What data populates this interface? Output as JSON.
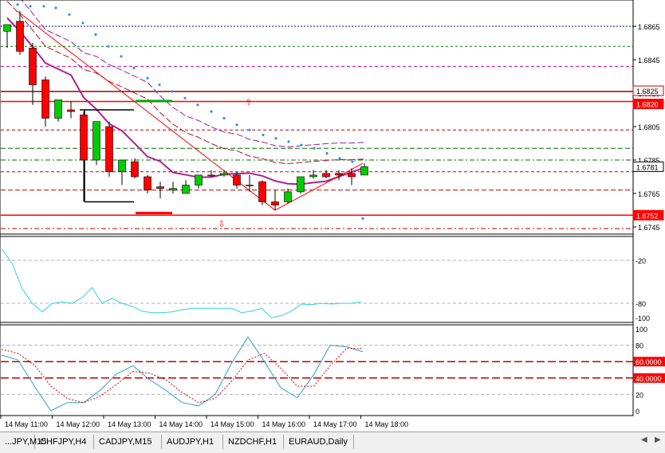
{
  "main_chart": {
    "price_labels": [
      "1.6865",
      "1.6845",
      "1.6825",
      "1.6805",
      "1.6785",
      "1.6765",
      "1.6745"
    ],
    "highlight_labels": [
      {
        "text": "1.6825",
        "bg": "#ffffff",
        "fg": "#000000",
        "border": "#cc0000"
      },
      {
        "text": "1.6820",
        "bg": "#ff0000",
        "fg": "#ffffff",
        "border": "#ff0000"
      },
      {
        "text": "1.6781",
        "bg": "#ffffff",
        "fg": "#000000",
        "border": "#000000"
      },
      {
        "text": "1.6752",
        "bg": "#ff0000",
        "fg": "#ffffff",
        "border": "#ff0000"
      }
    ],
    "candles": [
      {
        "o": 1.6862,
        "h": 1.6866,
        "l": 1.6852,
        "c": 1.6866
      },
      {
        "o": 1.6868,
        "h": 1.6874,
        "l": 1.6848,
        "c": 1.685
      },
      {
        "o": 1.6852,
        "h": 1.6855,
        "l": 1.6818,
        "c": 1.683
      },
      {
        "o": 1.6833,
        "h": 1.6835,
        "l": 1.6805,
        "c": 1.681
      },
      {
        "o": 1.681,
        "h": 1.682,
        "l": 1.6808,
        "c": 1.6821
      },
      {
        "o": 1.6815,
        "h": 1.682,
        "l": 1.681,
        "c": 1.6814
      },
      {
        "o": 1.6812,
        "h": 1.6814,
        "l": 1.676,
        "c": 1.6785
      },
      {
        "o": 1.6785,
        "h": 1.6808,
        "l": 1.6782,
        "c": 1.6808
      },
      {
        "o": 1.6805,
        "h": 1.6808,
        "l": 1.6775,
        "c": 1.6778
      },
      {
        "o": 1.6778,
        "h": 1.6784,
        "l": 1.677,
        "c": 1.6785
      },
      {
        "o": 1.6784,
        "h": 1.6786,
        "l": 1.6774,
        "c": 1.6775
      },
      {
        "o": 1.6775,
        "h": 1.6776,
        "l": 1.6765,
        "c": 1.6767
      },
      {
        "o": 1.6769,
        "h": 1.6772,
        "l": 1.6762,
        "c": 1.6768
      },
      {
        "o": 1.6767,
        "h": 1.6772,
        "l": 1.6765,
        "c": 1.6768
      },
      {
        "o": 1.6765,
        "h": 1.6773,
        "l": 1.6765,
        "c": 1.677
      },
      {
        "o": 1.677,
        "h": 1.6776,
        "l": 1.6768,
        "c": 1.6776
      },
      {
        "o": 1.6776,
        "h": 1.6779,
        "l": 1.6775,
        "c": 1.6776
      },
      {
        "o": 1.6776,
        "h": 1.6779,
        "l": 1.6775,
        "c": 1.6777
      },
      {
        "o": 1.6776,
        "h": 1.6778,
        "l": 1.6768,
        "c": 1.677
      },
      {
        "o": 1.677,
        "h": 1.6776,
        "l": 1.6766,
        "c": 1.677
      },
      {
        "o": 1.6772,
        "h": 1.6773,
        "l": 1.6758,
        "c": 1.676
      },
      {
        "o": 1.676,
        "h": 1.6767,
        "l": 1.6755,
        "c": 1.6758
      },
      {
        "o": 1.676,
        "h": 1.6768,
        "l": 1.6759,
        "c": 1.6766
      },
      {
        "o": 1.6766,
        "h": 1.6775,
        "l": 1.6765,
        "c": 1.6775
      },
      {
        "o": 1.6775,
        "h": 1.6779,
        "l": 1.6774,
        "c": 1.6776
      },
      {
        "o": 1.6777,
        "h": 1.6779,
        "l": 1.6774,
        "c": 1.6775
      },
      {
        "o": 1.6777,
        "h": 1.6779,
        "l": 1.6773,
        "c": 1.6776
      },
      {
        "o": 1.6777,
        "h": 1.678,
        "l": 1.677,
        "c": 1.6775
      },
      {
        "o": 1.6776,
        "h": 1.6783,
        "l": 1.6776,
        "c": 1.6781
      }
    ],
    "colors": {
      "bull": "#00cc00",
      "bear": "#ff0000",
      "wick": "#000000",
      "ma": "#b0208c",
      "ma_slow": "#b01030",
      "envelope_upper": "#9020b0",
      "sar": "#3090f0",
      "trendline": "#ff0000"
    }
  },
  "wpr_panel": {
    "labels": [
      "-20",
      "-80",
      "-100"
    ],
    "values": [
      -5,
      -25,
      -60,
      -80,
      -92,
      -80,
      -78,
      -80,
      -72,
      -58,
      -80,
      -73,
      -80,
      -84,
      -91,
      -93,
      -93,
      -92,
      -89,
      -87,
      -87,
      -87,
      -87,
      -87,
      -93,
      -91,
      -87,
      -100,
      -97,
      -91,
      -81,
      -82,
      -80,
      -81,
      -80,
      -80,
      -78
    ]
  },
  "stoch_panel": {
    "labels": [
      "100",
      "80",
      "60",
      "40",
      "20",
      "0"
    ],
    "level_labels": [
      "60.0000",
      "40.0000"
    ],
    "main": [
      68,
      62,
      30,
      0,
      10,
      10,
      25,
      45,
      55,
      38,
      25,
      10,
      6,
      20,
      58,
      90,
      60,
      28,
      16,
      44,
      80,
      78,
      72
    ],
    "signal": [
      75,
      70,
      56,
      30,
      15,
      10,
      18,
      32,
      48,
      46,
      38,
      22,
      10,
      15,
      36,
      62,
      70,
      52,
      30,
      30,
      55,
      76,
      76
    ]
  },
  "time_labels": [
    "14 May 11:00",
    "14 May 12:00",
    "14 May 13:00",
    "14 May 14:00",
    "14 May 15:00",
    "14 May 16:00",
    "14 May 17:00",
    "14 May 18:00"
  ],
  "tabs": [
    "...JPY,M15",
    "CHFJPY,H4",
    "CADJPY,M15",
    "AUDJPY,H1",
    "NZDCHF,H1",
    "EURAUD,Daily"
  ]
}
